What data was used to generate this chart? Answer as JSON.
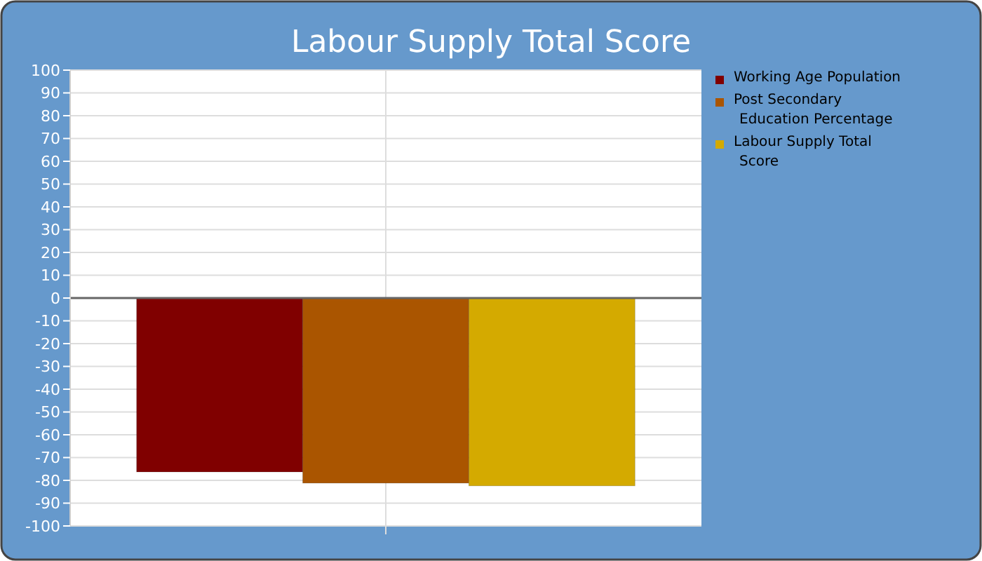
{
  "chart_data": {
    "type": "bar",
    "title": "Labour Supply Total Score",
    "categories": [
      null
    ],
    "series": [
      {
        "name": "Working Age Population",
        "color": "#800000",
        "values": [
          -76.3
        ]
      },
      {
        "name": "Post Secondary Education Percentage",
        "color": "#aa5500",
        "values": [
          -81.2
        ]
      },
      {
        "name": "Labour Supply Total Score",
        "color": "#d4aa00",
        "values": [
          -82.4
        ]
      }
    ],
    "ylim": [
      -100,
      100
    ],
    "yticks": [
      -100,
      -90,
      -80,
      -70,
      -60,
      -50,
      -40,
      -30,
      -20,
      -10,
      0,
      10,
      20,
      30,
      40,
      50,
      60,
      70,
      80,
      90,
      100
    ],
    "grid": true,
    "legend": "right"
  }
}
